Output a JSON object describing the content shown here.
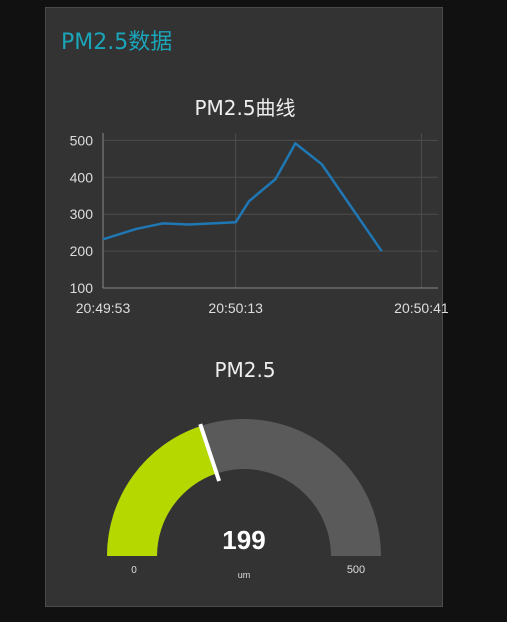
{
  "card": {
    "title": "PM2.5数据"
  },
  "chart": {
    "title": "PM2.5曲线",
    "y_ticks": [
      "500",
      "400",
      "300",
      "200",
      "100"
    ],
    "x_ticks": [
      "20:49:53",
      "20:50:13",
      "20:50:41"
    ]
  },
  "chart_data": {
    "type": "line",
    "title": "PM2.5曲线",
    "xlabel": "",
    "ylabel": "",
    "ylim": [
      100,
      520
    ],
    "xlim_seconds": [
      0,
      49
    ],
    "x_tick_labels": [
      "20:49:53",
      "20:50:13",
      "20:50:41"
    ],
    "grid": true,
    "series": [
      {
        "times": [
          "20:49:53",
          "20:49:58",
          "20:50:02",
          "20:50:06",
          "20:50:13",
          "20:50:15",
          "20:50:19",
          "20:50:22",
          "20:50:26",
          "20:50:35"
        ],
        "values": [
          232,
          260,
          275,
          272,
          278,
          335,
          395,
          492,
          435,
          200
        ],
        "color": "#1f77b4"
      }
    ]
  },
  "gauge": {
    "title": "PM2.5",
    "value": 199,
    "value_label": "199",
    "min": 0,
    "max": 500,
    "min_label": "0",
    "max_label": "500",
    "unit": "um",
    "fill_color": "#b5d900",
    "track_color": "#5a5a5a"
  }
}
